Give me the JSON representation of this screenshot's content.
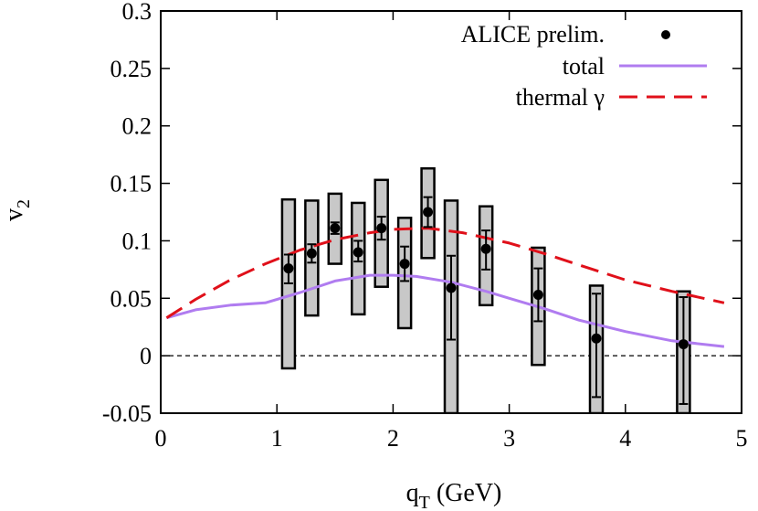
{
  "chart_data": {
    "type": "scatter",
    "xlabel": "q",
    "xlabel_sub": "T",
    "xlabel_unit": " (GeV)",
    "ylabel": "v",
    "ylabel_sub": "2",
    "xlim": [
      0,
      5
    ],
    "ylim": [
      -0.05,
      0.3
    ],
    "x_ticks": [
      0,
      1,
      2,
      3,
      4,
      5
    ],
    "x_tick_labels": [
      "0",
      "1",
      "2",
      "3",
      "4",
      "5"
    ],
    "y_ticks": [
      -0.05,
      0,
      0.05,
      0.1,
      0.15,
      0.2,
      0.25,
      0.3
    ],
    "y_tick_labels": [
      "-0.05",
      "0",
      "0.05",
      "0.1",
      "0.15",
      "0.2",
      "0.25",
      "0.3"
    ],
    "zero_line": true,
    "legend_position": "top-right",
    "legend": [
      {
        "label": "ALICE prelim.",
        "style": "point"
      },
      {
        "label": "total",
        "style": "solid"
      },
      {
        "label": "thermal γ",
        "style": "dashed"
      }
    ],
    "colors": {
      "points": "#000000",
      "total": "#b07cf0",
      "thermal": "#e0101a",
      "box_fill": "#c8c8c8",
      "box_stroke": "#000000"
    },
    "series": [
      {
        "name": "ALICE prelim.",
        "type": "scatter",
        "points": [
          {
            "x": 1.1,
            "y": 0.076,
            "stat_lo": 0.063,
            "stat_hi": 0.088,
            "sys_lo": -0.011,
            "sys_hi": 0.136
          },
          {
            "x": 1.3,
            "y": 0.089,
            "stat_lo": 0.081,
            "stat_hi": 0.097,
            "sys_lo": 0.035,
            "sys_hi": 0.135
          },
          {
            "x": 1.5,
            "y": 0.111,
            "stat_lo": 0.106,
            "stat_hi": 0.116,
            "sys_lo": 0.08,
            "sys_hi": 0.141
          },
          {
            "x": 1.7,
            "y": 0.09,
            "stat_lo": 0.082,
            "stat_hi": 0.1,
            "sys_lo": 0.036,
            "sys_hi": 0.133
          },
          {
            "x": 1.9,
            "y": 0.111,
            "stat_lo": 0.101,
            "stat_hi": 0.121,
            "sys_lo": 0.06,
            "sys_hi": 0.153
          },
          {
            "x": 2.1,
            "y": 0.08,
            "stat_lo": 0.065,
            "stat_hi": 0.095,
            "sys_lo": 0.024,
            "sys_hi": 0.12
          },
          {
            "x": 2.3,
            "y": 0.125,
            "stat_lo": 0.112,
            "stat_hi": 0.138,
            "sys_lo": 0.085,
            "sys_hi": 0.163
          },
          {
            "x": 2.5,
            "y": 0.059,
            "stat_lo": 0.014,
            "stat_hi": 0.087,
            "sys_lo": -0.05,
            "sys_hi": 0.135
          },
          {
            "x": 2.8,
            "y": 0.093,
            "stat_lo": 0.075,
            "stat_hi": 0.109,
            "sys_lo": 0.044,
            "sys_hi": 0.13
          },
          {
            "x": 3.25,
            "y": 0.053,
            "stat_lo": 0.03,
            "stat_hi": 0.076,
            "sys_lo": -0.008,
            "sys_hi": 0.094
          },
          {
            "x": 3.75,
            "y": 0.015,
            "stat_lo": -0.036,
            "stat_hi": 0.054,
            "sys_lo": -0.05,
            "sys_hi": 0.061
          },
          {
            "x": 4.5,
            "y": 0.01,
            "stat_lo": -0.042,
            "stat_hi": 0.051,
            "sys_lo": -0.05,
            "sys_hi": 0.056
          }
        ]
      },
      {
        "name": "total",
        "type": "line",
        "x": [
          0.05,
          0.3,
          0.6,
          0.9,
          1.2,
          1.5,
          1.8,
          2.0,
          2.2,
          2.5,
          2.8,
          3.0,
          3.3,
          3.6,
          4.0,
          4.4,
          4.85
        ],
        "y": [
          0.033,
          0.04,
          0.044,
          0.046,
          0.055,
          0.065,
          0.07,
          0.07,
          0.069,
          0.064,
          0.056,
          0.05,
          0.041,
          0.031,
          0.021,
          0.013,
          0.008
        ]
      },
      {
        "name": "thermal γ",
        "type": "line",
        "x": [
          0.05,
          0.3,
          0.6,
          0.9,
          1.2,
          1.5,
          1.8,
          2.0,
          2.3,
          2.6,
          3.0,
          3.3,
          3.6,
          4.0,
          4.4,
          4.85
        ],
        "y": [
          0.033,
          0.049,
          0.066,
          0.08,
          0.092,
          0.101,
          0.107,
          0.11,
          0.111,
          0.107,
          0.098,
          0.089,
          0.079,
          0.066,
          0.056,
          0.046
        ]
      }
    ]
  }
}
